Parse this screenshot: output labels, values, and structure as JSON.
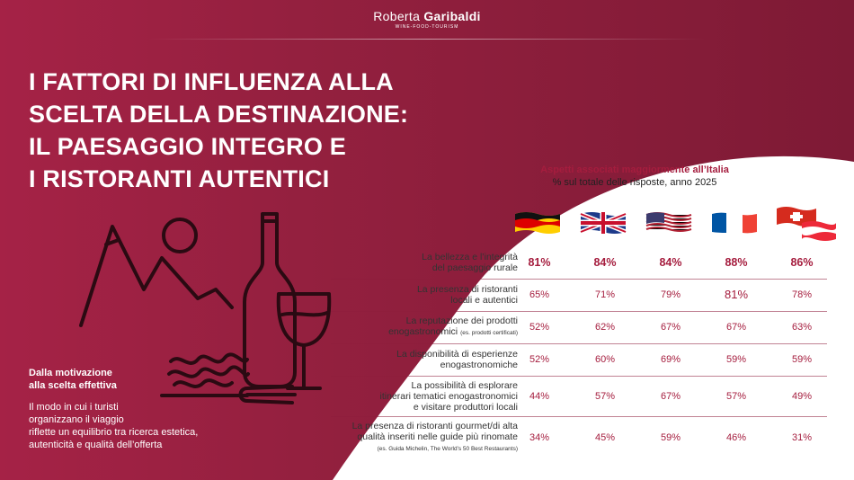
{
  "brand": {
    "first": "Roberta ",
    "last": "Garibaldi",
    "tagline": "WINE-FOOD-TOURISM"
  },
  "title_lines": [
    "I FATTORI DI INFLUENZA ALLA",
    "SCELTA DELLA DESTINAZIONE:",
    "IL PAESAGGIO INTEGRO E",
    "I RISTORANTI AUTENTICI"
  ],
  "side": {
    "heading": [
      "Dalla motivazione",
      "alla scelta effettiva"
    ],
    "body": [
      "Il modo in cui i turisti",
      "organizzano il viaggio",
      "riflette un equilibrio tra ricerca estetica,",
      "autenticità e qualità dell’offerta"
    ]
  },
  "chart": {
    "title": "Aspetti associati maggiormente all’Italia",
    "subtitle": "% sul totale delle risposte, anno 2025"
  },
  "flags": [
    "germany-flag",
    "uk-flag",
    "usa-flag",
    "france-flag",
    "switzerland-austria-flag"
  ],
  "colors": {
    "brand": "#a51d3e",
    "bg": "#8e1d3c"
  },
  "rows": [
    {
      "label": [
        "La bellezza e l’integrità",
        "del paesaggio rurale"
      ],
      "note": "",
      "values": [
        "81%",
        "84%",
        "84%",
        "88%",
        "86%"
      ]
    },
    {
      "label": [
        "La presenza di ristoranti",
        "locali e autentici"
      ],
      "note": "",
      "values": [
        "65%",
        "71%",
        "79%",
        "81%",
        "78%"
      ]
    },
    {
      "label": [
        "La reputazione dei prodotti",
        "enogastronomici"
      ],
      "note": "(es. prodotti certificati)",
      "values": [
        "52%",
        "62%",
        "67%",
        "67%",
        "63%"
      ]
    },
    {
      "label": [
        "La disponibilità di esperienze",
        "enogastronomiche"
      ],
      "note": "",
      "values": [
        "52%",
        "60%",
        "69%",
        "59%",
        "59%"
      ]
    },
    {
      "label": [
        "La possibilità di esplorare",
        "itinerari tematici enogastronomici",
        "e visitare produttori locali"
      ],
      "note": "",
      "values": [
        "44%",
        "57%",
        "67%",
        "57%",
        "49%"
      ]
    },
    {
      "label": [
        "La presenza di ristoranti gourmet/di alta",
        "qualità inseriti nelle guide più rinomate"
      ],
      "note": "(es. Guida Michelin, The World’s 50 Best Restaurants)",
      "values": [
        "34%",
        "45%",
        "59%",
        "46%",
        "31%"
      ]
    }
  ]
}
